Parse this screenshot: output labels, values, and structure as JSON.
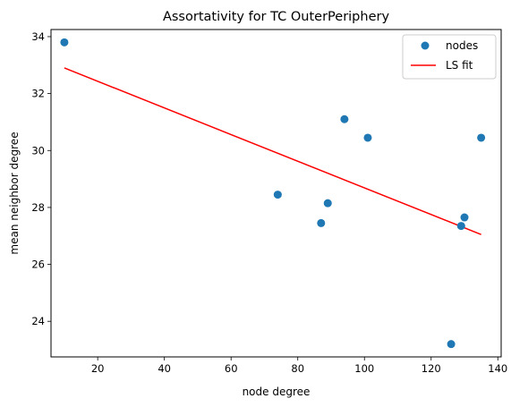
{
  "chart_data": {
    "type": "scatter",
    "title": "Assortativity for TC OuterPeriphery",
    "xlabel": "node degree",
    "ylabel": "mean neighbor degree",
    "xlim": [
      6,
      141
    ],
    "ylim": [
      22.75,
      34.25
    ],
    "xticks": [
      20,
      40,
      60,
      80,
      100,
      120,
      140
    ],
    "yticks": [
      24,
      26,
      28,
      30,
      32,
      34
    ],
    "grid": false,
    "legend_position": "top-right",
    "series": [
      {
        "name": "nodes",
        "kind": "scatter",
        "color": "#1f77b4",
        "points": [
          {
            "x": 10,
            "y": 33.8
          },
          {
            "x": 74,
            "y": 28.45
          },
          {
            "x": 87,
            "y": 27.45
          },
          {
            "x": 89,
            "y": 28.15
          },
          {
            "x": 94,
            "y": 31.1
          },
          {
            "x": 101,
            "y": 30.45
          },
          {
            "x": 126,
            "y": 23.2
          },
          {
            "x": 129,
            "y": 27.35
          },
          {
            "x": 130,
            "y": 27.65
          },
          {
            "x": 135,
            "y": 30.45
          }
        ]
      },
      {
        "name": "LS fit",
        "kind": "line",
        "color": "#ff0000",
        "points": [
          {
            "x": 10,
            "y": 32.9
          },
          {
            "x": 135,
            "y": 27.05
          }
        ]
      }
    ]
  }
}
